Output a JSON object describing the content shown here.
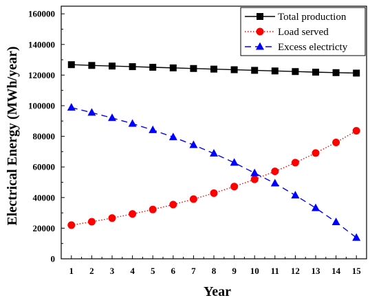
{
  "chart_data": {
    "type": "line",
    "title": "",
    "xlabel": "Year",
    "ylabel": "Electrical Energy (MWh/year)",
    "x": [
      1,
      2,
      3,
      4,
      5,
      6,
      7,
      8,
      9,
      10,
      11,
      12,
      13,
      14,
      15
    ],
    "xlim": [
      0.5,
      15.5
    ],
    "ylim": [
      0,
      165000
    ],
    "x_ticks": [
      "1",
      "2",
      "3",
      "4",
      "5",
      "6",
      "7",
      "8",
      "9",
      "10",
      "11",
      "12",
      "13",
      "14",
      "15"
    ],
    "y_ticks": [
      "0",
      "20000",
      "40000",
      "60000",
      "80000",
      "100000",
      "120000",
      "140000",
      "160000"
    ],
    "legend_position": "top-right",
    "grid": false,
    "series": [
      {
        "name": "Total production",
        "color": "#000000",
        "marker": "square",
        "line_style": "solid",
        "values": [
          126800,
          126300,
          125900,
          125500,
          125100,
          124700,
          124300,
          123900,
          123500,
          123100,
          122700,
          122300,
          121900,
          121600,
          121300
        ]
      },
      {
        "name": "Load served",
        "color": "#ff0000",
        "marker": "circle",
        "line_style": "dotted",
        "values": [
          22000,
          24200,
          26600,
          29300,
          32200,
          35400,
          39000,
          42900,
          47200,
          51900,
          57100,
          62800,
          69100,
          76000,
          83600
        ]
      },
      {
        "name": "Excess electricty",
        "color": "#0000ff",
        "marker": "triangle",
        "line_style": "dashed",
        "values": [
          98800,
          95500,
          92000,
          88300,
          84100,
          79500,
          74400,
          68800,
          62800,
          56000,
          49300,
          41500,
          33200,
          24000,
          13800
        ]
      }
    ]
  }
}
